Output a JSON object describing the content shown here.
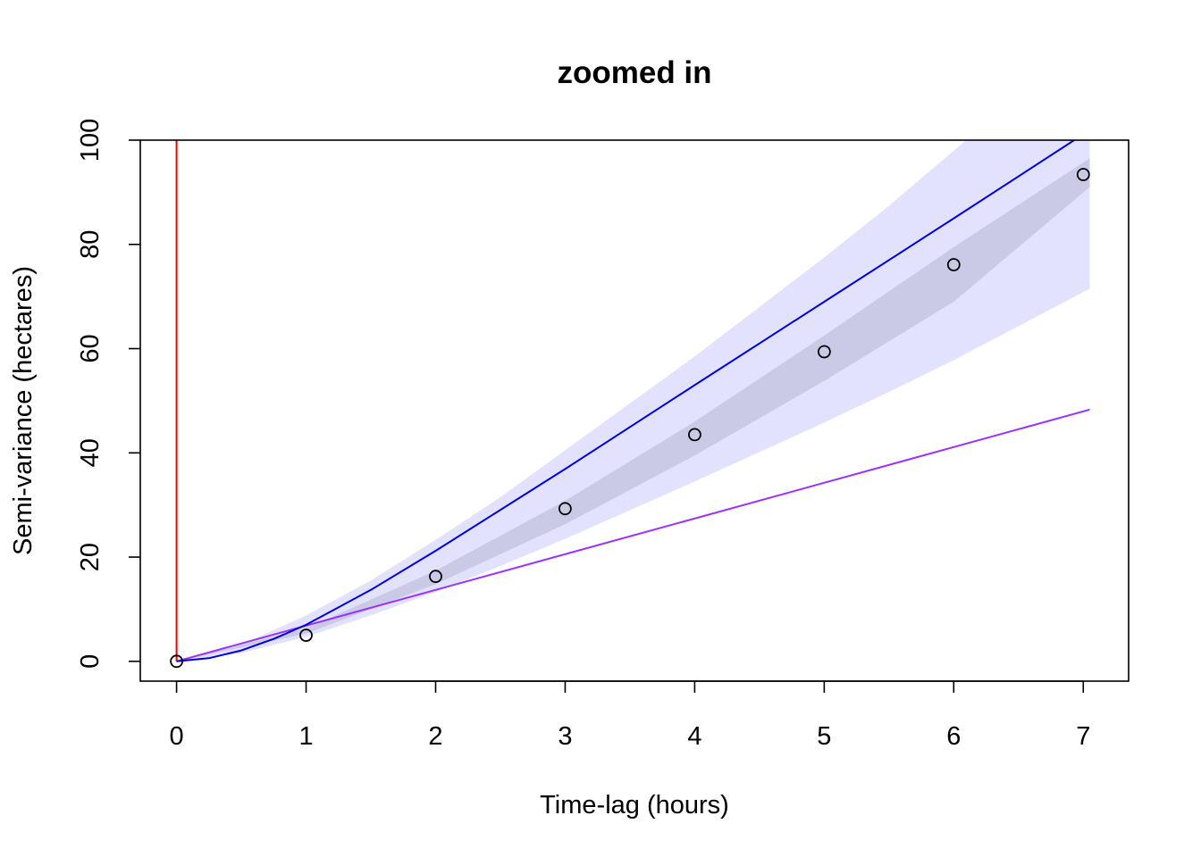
{
  "chart_data": {
    "type": "scatter",
    "title": "zoomed in",
    "xlabel": "Time-lag (hours)",
    "ylabel": "Semi-variance (hectares)",
    "xlim": [
      -0.28,
      7.35
    ],
    "ylim": [
      -3.8,
      100
    ],
    "xticks": [
      "0",
      "1",
      "2",
      "3",
      "4",
      "5",
      "6",
      "7"
    ],
    "yticks": [
      "0",
      "20",
      "40",
      "60",
      "80",
      "100"
    ],
    "grid": false,
    "legend": "none",
    "colors": {
      "points": "#000000",
      "blue_line": "#0000dd",
      "purple_line": "#9b30ff",
      "red_line": "#ee0000",
      "wide_band": "#e2e2ff",
      "narrow_band": "#cacae6"
    },
    "points": {
      "x": [
        0,
        1,
        2,
        3,
        4,
        5,
        6,
        7
      ],
      "y": [
        0,
        5,
        16.3,
        29.3,
        43.5,
        59.4,
        76.1,
        93.4
      ]
    },
    "blue_curve": {
      "x": [
        0,
        0.25,
        0.5,
        0.75,
        1,
        1.5,
        2,
        3,
        4,
        5,
        6,
        6.93
      ],
      "y": [
        0,
        0.6,
        2.1,
        4.3,
        7,
        13.7,
        21.2,
        36.9,
        53,
        69,
        85,
        100
      ]
    },
    "purple_line": {
      "x": [
        0,
        7.05
      ],
      "y": [
        0,
        48.3
      ]
    },
    "red_line": {
      "x": [
        0,
        0
      ],
      "y": [
        0,
        100
      ]
    },
    "wide_band": {
      "x": [
        0,
        0.5,
        1,
        1.5,
        2,
        2.5,
        3,
        4,
        5,
        5.5,
        6,
        7.05
      ],
      "upper": [
        0,
        3.2,
        8.8,
        15.5,
        23.3,
        31.5,
        40.5,
        58.5,
        77.5,
        87.4,
        98,
        120
      ],
      "lower": [
        0,
        1.6,
        4.7,
        8.8,
        13.3,
        18.3,
        23.5,
        34.5,
        45.8,
        51.7,
        57.8,
        71.5
      ]
    },
    "narrow_band": {
      "x": [
        0,
        1,
        2,
        3,
        4,
        5,
        6,
        7.05
      ],
      "upper": [
        0,
        6.3,
        17.4,
        30.8,
        46.0,
        62.5,
        79.5,
        96.5
      ],
      "lower": [
        0,
        5.3,
        14.8,
        26.3,
        39.5,
        53.8,
        69.0,
        91.0
      ]
    }
  }
}
